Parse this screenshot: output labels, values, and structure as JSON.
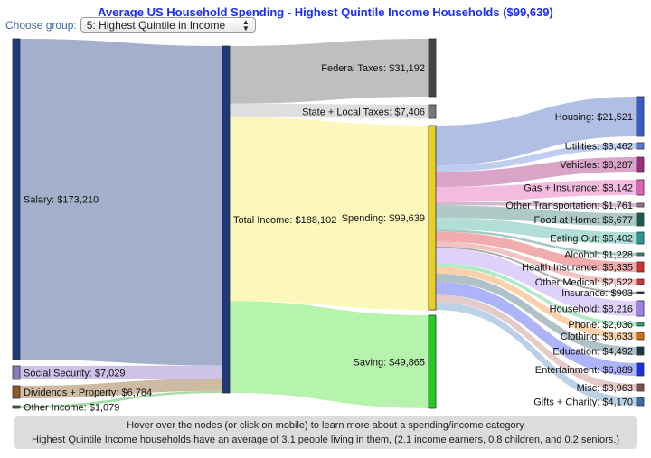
{
  "title": "Average US Household Spending - Highest Quintile Income Households ($99,639)",
  "chooser": {
    "label": "Choose group:",
    "selected": "5: Highest Quintile in Income"
  },
  "info": {
    "line1": "Hover over the nodes (or click on mobile) to learn more about a spending/income category",
    "line2": "Highest Quintile Income households have an average of 3.1 people living in them, (2.1 income earners, 0.8 children, and 0.2 seniors.)"
  },
  "chart_data": {
    "type": "sankey",
    "nodes": [
      {
        "id": "salary",
        "label": "Salary: $173,210",
        "value": 173210,
        "color": "#1f3a78",
        "link_color": "#9aa6c6"
      },
      {
        "id": "ss",
        "label": "Social Security: $7,029",
        "value": 7029,
        "color": "#8e7ab8",
        "link_color": "#c9bde4"
      },
      {
        "id": "div",
        "label": "Dividends + Property: $6,784",
        "value": 6784,
        "color": "#8a5a2a",
        "link_color": "#c8b49a"
      },
      {
        "id": "other",
        "label": "Other Income: $1,079",
        "value": 1079,
        "color": "#2a7a2a",
        "link_color": "#9ad89a"
      },
      {
        "id": "total",
        "label": "Total Income: $188,102",
        "value": 188102,
        "color": "#1f3a78"
      },
      {
        "id": "fed",
        "label": "Federal Taxes: $31,192",
        "value": 31192,
        "color": "#444",
        "link_color": "#b8b8b8"
      },
      {
        "id": "state",
        "label": "State + Local Taxes: $7,406",
        "value": 7406,
        "color": "#777",
        "link_color": "#dcdcdc"
      },
      {
        "id": "spend",
        "label": "Spending: $99,639",
        "value": 99639,
        "color": "#e8d020",
        "link_color": "#fdf6b4"
      },
      {
        "id": "save",
        "label": "Saving: $49,865",
        "value": 49865,
        "color": "#22cc22",
        "link_color": "#aef2a4"
      },
      {
        "id": "housing",
        "label": "Housing: $21,521",
        "value": 21521,
        "color": "#3a5cc8",
        "link_color": "#a9b8e4"
      },
      {
        "id": "util",
        "label": "Utilities: $3,462",
        "value": 3462,
        "color": "#5a7ad8",
        "link_color": "#b8c8f0"
      },
      {
        "id": "veh",
        "label": "Vehicles: $8,287",
        "value": 8287,
        "color": "#a02a80",
        "link_color": "#d49ac2"
      },
      {
        "id": "gas",
        "label": "Gas + Insurance: $8,142",
        "value": 8142,
        "color": "#e060b8",
        "link_color": "#f2b4dc"
      },
      {
        "id": "otrans",
        "label": "Other Transportation: $1,761",
        "value": 1761,
        "color": "#a07098",
        "link_color": "#cfb0c8"
      },
      {
        "id": "food",
        "label": "Food at Home: $6,677",
        "value": 6677,
        "color": "#1a5a50",
        "link_color": "#a4c4c0"
      },
      {
        "id": "eat",
        "label": "Eating Out: $6,402",
        "value": 6402,
        "color": "#2a9a90",
        "link_color": "#a8dcd4"
      },
      {
        "id": "alc",
        "label": "Alcohol: $1,228",
        "value": 1228,
        "color": "#3a8a80",
        "link_color": "#9cc4bc"
      },
      {
        "id": "health",
        "label": "Health Insurance: $5,335",
        "value": 5335,
        "color": "#d03030",
        "link_color": "#f0a4a4"
      },
      {
        "id": "omed",
        "label": "Other Medical: $2,522",
        "value": 2522,
        "color": "#c83838",
        "link_color": "#f2bcbc"
      },
      {
        "id": "ins",
        "label": "Insurance: $903",
        "value": 903,
        "color": "#333",
        "link_color": "#a0a0a0"
      },
      {
        "id": "hh",
        "label": "Household: $8,216",
        "value": 8216,
        "color": "#a080e8",
        "link_color": "#dccdfa"
      },
      {
        "id": "phone",
        "label": "Phone: $2,036",
        "value": 2036,
        "color": "#30a060",
        "link_color": "#a8e8c0"
      },
      {
        "id": "cloth",
        "label": "Clothing: $3,633",
        "value": 3633,
        "color": "#d07010",
        "link_color": "#f8cca4"
      },
      {
        "id": "edu",
        "label": "Education: $4,492",
        "value": 4492,
        "color": "#1a3a4a",
        "link_color": "#a8bac2"
      },
      {
        "id": "ent",
        "label": "Entertainment: $6,889",
        "value": 6889,
        "color": "#1a30e0",
        "link_color": "#a4acf8"
      },
      {
        "id": "misc",
        "label": "Misc: $3,963",
        "value": 3963,
        "color": "#805050",
        "link_color": "#e2c4c4"
      },
      {
        "id": "gifts",
        "label": "Gifts + Charity: $4,170",
        "value": 4170,
        "color": "#3a6aa8",
        "link_color": "#b4cce4"
      }
    ],
    "links": [
      [
        "salary",
        "total",
        173210
      ],
      [
        "ss",
        "total",
        7029
      ],
      [
        "div",
        "total",
        6784
      ],
      [
        "other",
        "total",
        1079
      ],
      [
        "total",
        "fed",
        31192
      ],
      [
        "total",
        "state",
        7406
      ],
      [
        "total",
        "spend",
        99639
      ],
      [
        "total",
        "save",
        49865
      ],
      [
        "spend",
        "housing",
        21521
      ],
      [
        "spend",
        "util",
        3462
      ],
      [
        "spend",
        "veh",
        8287
      ],
      [
        "spend",
        "gas",
        8142
      ],
      [
        "spend",
        "otrans",
        1761
      ],
      [
        "spend",
        "food",
        6677
      ],
      [
        "spend",
        "eat",
        6402
      ],
      [
        "spend",
        "alc",
        1228
      ],
      [
        "spend",
        "health",
        5335
      ],
      [
        "spend",
        "omed",
        2522
      ],
      [
        "spend",
        "ins",
        903
      ],
      [
        "spend",
        "hh",
        8216
      ],
      [
        "spend",
        "phone",
        2036
      ],
      [
        "spend",
        "cloth",
        3633
      ],
      [
        "spend",
        "edu",
        4492
      ],
      [
        "spend",
        "ent",
        6889
      ],
      [
        "spend",
        "misc",
        3963
      ],
      [
        "spend",
        "gifts",
        4170
      ]
    ]
  }
}
